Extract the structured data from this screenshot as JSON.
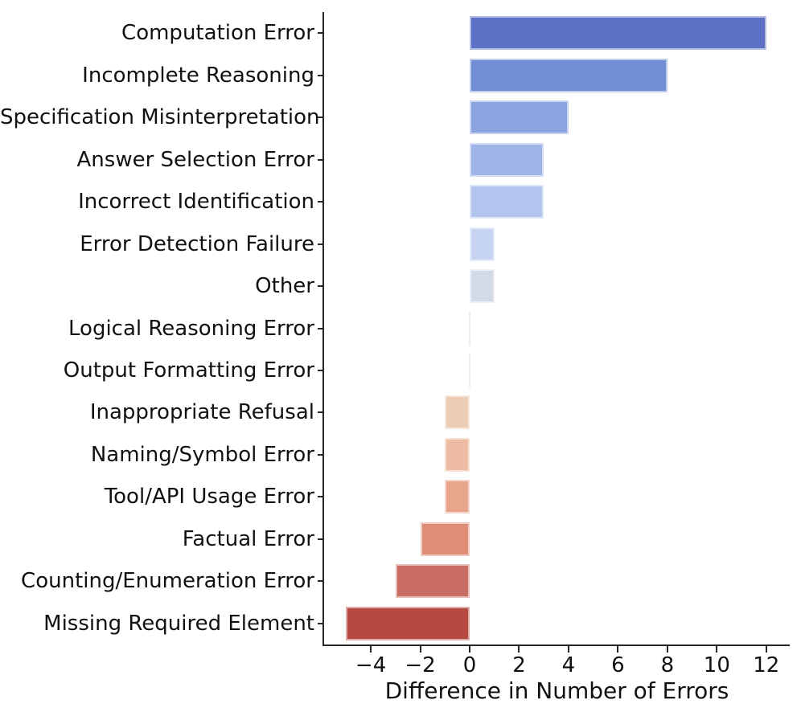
{
  "chart_data": {
    "type": "bar",
    "orientation": "horizontal",
    "title": "",
    "xlabel": "Difference in Number of Errors",
    "ylabel": "",
    "xlim": [
      -5.89,
      12.95
    ],
    "grid": false,
    "legend": null,
    "xticks": [
      -4,
      -2,
      0,
      2,
      4,
      6,
      8,
      10,
      12
    ],
    "xtick_labels": [
      "−4",
      "−2",
      "0",
      "2",
      "4",
      "6",
      "8",
      "10",
      "12"
    ],
    "categories": [
      "Computation Error",
      "Incomplete Reasoning",
      "Specification Misinterpretation",
      "Answer Selection Error",
      "Incorrect Identification",
      "Error Detection Failure",
      "Other",
      "Logical Reasoning Error",
      "Output Formatting Error",
      "Inappropriate Refusal",
      "Naming/Symbol Error",
      "Tool/API Usage Error",
      "Factual Error",
      "Counting/Enumeration Error",
      "Missing Required Element"
    ],
    "values": [
      12,
      8,
      4,
      3,
      3,
      1,
      1,
      0,
      0,
      -1,
      -1,
      -1,
      -2,
      -3,
      -5
    ],
    "bar_colors": [
      "#5d72c4",
      "#748ed6",
      "#8ca3e1",
      "#9fb4e8",
      "#b3c5ee",
      "#c6d4f1",
      "#d2d9e7",
      "#dedcda",
      "#e9d5c8",
      "#edccb5",
      "#eebca3",
      "#e8a58c",
      "#df8d77",
      "#c96d62",
      "#b44941"
    ],
    "zero_bar_color": "#ececec",
    "axis_color": "#262626",
    "text_color": "#111111"
  }
}
